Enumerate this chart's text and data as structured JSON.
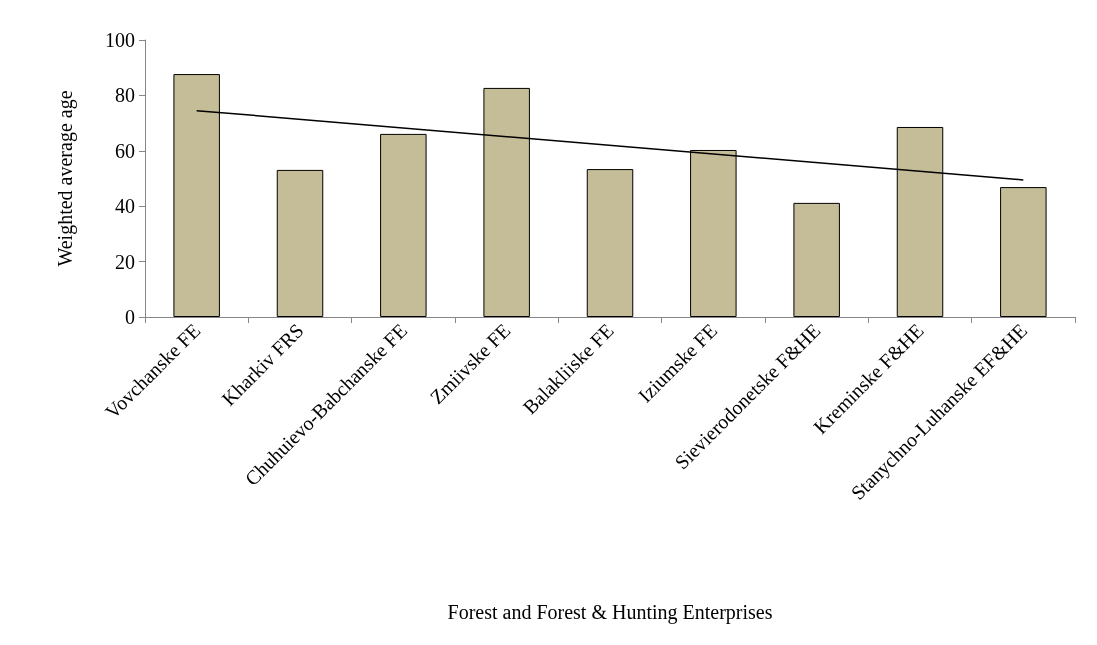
{
  "chart_data": {
    "type": "bar",
    "xlabel": "Forest and Forest & Hunting Enterprises",
    "ylabel": "Weighted average age",
    "categories": [
      "Vovchanske FE",
      "Kharkiv FRS",
      "Chuhuievo-Babchanske FE",
      "Zmiivske FE",
      "Balakliiske FE",
      "Iziumske FE",
      "Sievierodonetske F&HE",
      "Kreminske F&HE",
      "Stanychno-Luhanske EF&HE"
    ],
    "series": [
      {
        "color": "#c4bd97",
        "values": [
          87.7,
          53.1,
          66.1,
          82.7,
          53.4,
          60.3,
          41.2,
          68.6,
          46.9
        ]
      },
      {
        "type": "line",
        "color": "#000000",
        "x": [
          "Vovchanske FE",
          "Stanychno-Luhanske EF&HE"
        ],
        "values": [
          74.5,
          49.5
        ]
      }
    ],
    "ylim": [
      0,
      100
    ],
    "yticks": [
      0,
      20,
      40,
      60,
      80,
      100
    ],
    "grid": false,
    "marker": "none"
  }
}
